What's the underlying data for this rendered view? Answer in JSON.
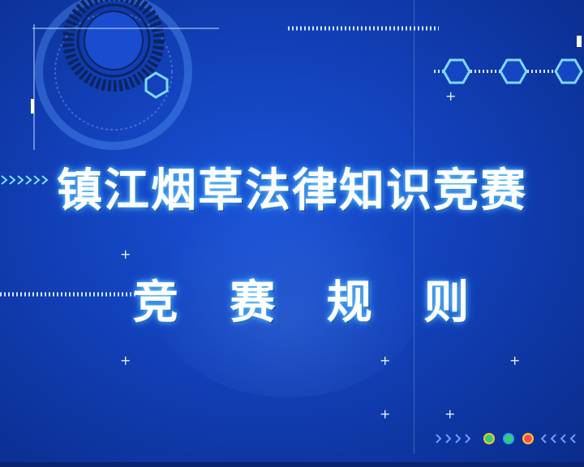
{
  "slide": {
    "title": "镇江烟草法律知识竞赛",
    "subtitle": "竞 赛 规 则"
  },
  "decorations": {
    "plus_glyph": "+",
    "arrow_glyph": "»»»»»"
  },
  "colors": {
    "background": "#1446c4",
    "accent": "#6fd2ff",
    "text": "#ffffff",
    "dot_active": "#ff4d4d",
    "dot_green": "#35d06a",
    "dot_yellow": "#f3c73a"
  }
}
